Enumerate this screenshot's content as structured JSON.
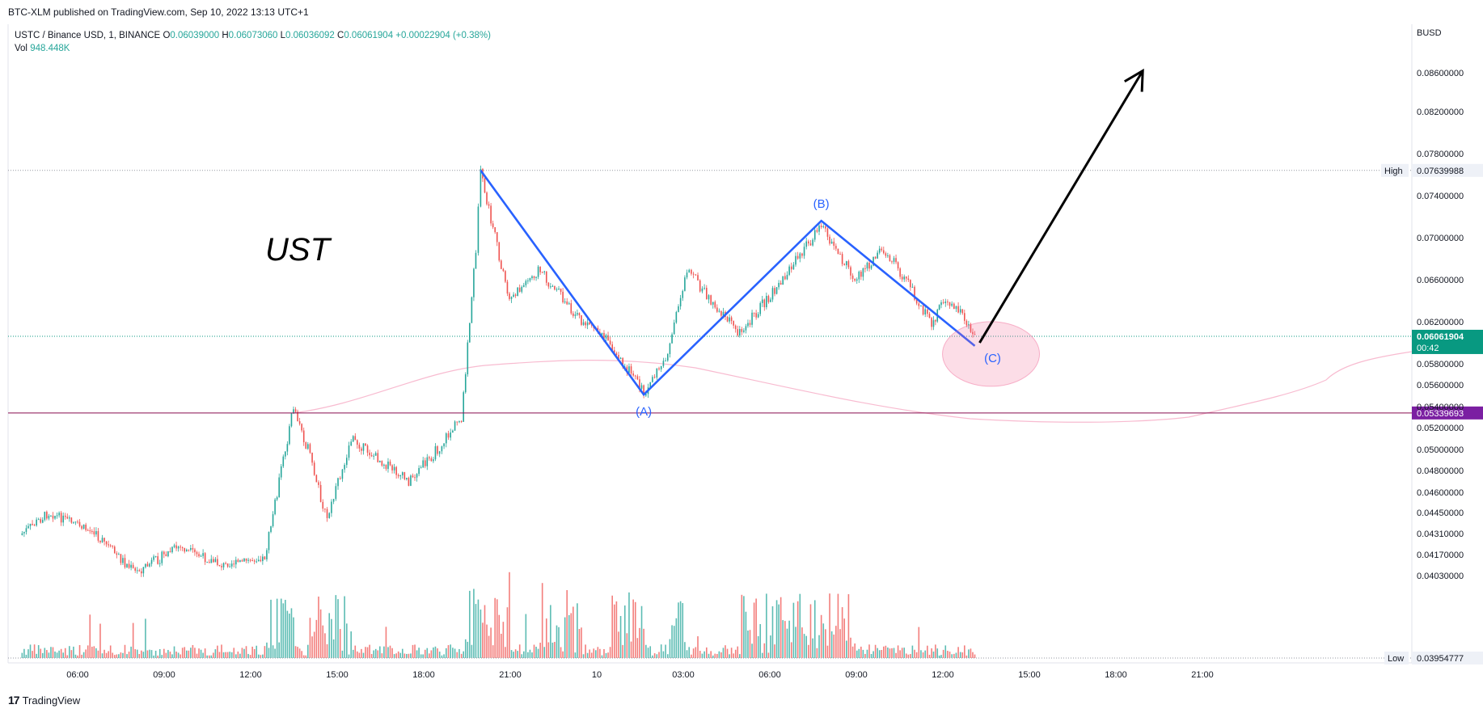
{
  "caption": "BTC-XLM published on TradingView.com, Sep 10, 2022 13:13 UTC+1",
  "legend": {
    "symbol": "USTC / Binance USD, 1, BINANCE",
    "open_label": "O",
    "open": "0.06039000",
    "high_label": "H",
    "high": "0.06073060",
    "low_label": "L",
    "low": "0.06036092",
    "close_label": "C",
    "close": "0.06061904",
    "change": "+0.00022904 (+0.38%)",
    "vol_label": "Vol",
    "vol": "948.448K"
  },
  "footer": {
    "logo_mark": "17",
    "logo_text": "TradingView"
  },
  "colors": {
    "up": "#26a69a",
    "down": "#ef5350",
    "wave": "#2962ff",
    "ma": "#f8bbd0",
    "support": "#880e4f",
    "label_bg": "#7b1fa2",
    "price_bg": "#089981"
  },
  "chart_data": {
    "type": "candlestick",
    "currency": "BUSD",
    "title": "UST",
    "y_ticks": [
      "0.08600000",
      "0.08200000",
      "0.07800000",
      "0.07400000",
      "0.07000000",
      "0.06600000",
      "0.06200000",
      "0.05800000",
      "0.05600000",
      "0.05400000",
      "0.05200000",
      "0.05000000",
      "0.04800000",
      "0.04600000",
      "0.04450000",
      "0.04310000",
      "0.04170000",
      "0.04030000"
    ],
    "x_ticks": [
      "06:00",
      "09:00",
      "12:00",
      "15:00",
      "18:00",
      "21:00",
      "10",
      "03:00",
      "06:00",
      "09:00",
      "12:00",
      "15:00",
      "18:00",
      "21:00"
    ],
    "high_label": "High",
    "high_value": "0.07639988",
    "low_label": "Low",
    "low_value": "0.03954777",
    "last_price": "0.06061904",
    "countdown": "00:42",
    "support_price": "0.05339693",
    "wave_labels": [
      "(A)",
      "(B)",
      "(C)"
    ],
    "wave_points": [
      {
        "time": "Sep 9 20:00",
        "price": 0.0764
      },
      {
        "time": "Sep 10 01:40",
        "price": 0.0551
      },
      {
        "time": "Sep 10 07:50",
        "price": 0.0716
      },
      {
        "time": "Sep 10 13:10",
        "price": 0.0597
      }
    ],
    "price_path": [
      {
        "time": "Sep 9 04:00",
        "price": 0.043
      },
      {
        "time": "Sep 9 05:00",
        "price": 0.0445
      },
      {
        "time": "Sep 9 06:30",
        "price": 0.0432
      },
      {
        "time": "Sep 9 08:00",
        "price": 0.0405
      },
      {
        "time": "Sep 9 09:30",
        "price": 0.0422
      },
      {
        "time": "Sep 9 11:00",
        "price": 0.041
      },
      {
        "time": "Sep 9 12:30",
        "price": 0.0415
      },
      {
        "time": "Sep 9 13:00",
        "price": 0.047
      },
      {
        "time": "Sep 9 13:30",
        "price": 0.054
      },
      {
        "time": "Sep 9 14:00",
        "price": 0.05
      },
      {
        "time": "Sep 9 14:40",
        "price": 0.044
      },
      {
        "time": "Sep 9 15:30",
        "price": 0.051
      },
      {
        "time": "Sep 9 16:30",
        "price": 0.049
      },
      {
        "time": "Sep 9 17:30",
        "price": 0.047
      },
      {
        "time": "Sep 9 18:30",
        "price": 0.05
      },
      {
        "time": "Sep 9 19:20",
        "price": 0.053
      },
      {
        "time": "Sep 9 19:50",
        "price": 0.069
      },
      {
        "time": "Sep 9 20:00",
        "price": 0.076
      },
      {
        "time": "Sep 9 21:00",
        "price": 0.064
      },
      {
        "time": "Sep 9 22:00",
        "price": 0.067
      },
      {
        "time": "Sep 9 23:30",
        "price": 0.062
      },
      {
        "time": "Sep 10 00:30",
        "price": 0.06
      },
      {
        "time": "Sep 10 01:40",
        "price": 0.0552
      },
      {
        "time": "Sep 10 02:30",
        "price": 0.059
      },
      {
        "time": "Sep 10 03:10",
        "price": 0.067
      },
      {
        "time": "Sep 10 04:00",
        "price": 0.064
      },
      {
        "time": "Sep 10 05:00",
        "price": 0.061
      },
      {
        "time": "Sep 10 06:30",
        "price": 0.066
      },
      {
        "time": "Sep 10 07:50",
        "price": 0.0712
      },
      {
        "time": "Sep 10 09:00",
        "price": 0.066
      },
      {
        "time": "Sep 10 10:00",
        "price": 0.069
      },
      {
        "time": "Sep 10 11:00",
        "price": 0.065
      },
      {
        "time": "Sep 10 11:40",
        "price": 0.0615
      },
      {
        "time": "Sep 10 12:00",
        "price": 0.064
      },
      {
        "time": "Sep 10 12:40",
        "price": 0.063
      },
      {
        "time": "Sep 10 13:10",
        "price": 0.0606
      }
    ],
    "projection": {
      "from": {
        "time": "Sep 10 13:20",
        "price": 0.06
      },
      "to": {
        "time": "Sep 10 19:00",
        "price": 0.0862
      }
    }
  }
}
